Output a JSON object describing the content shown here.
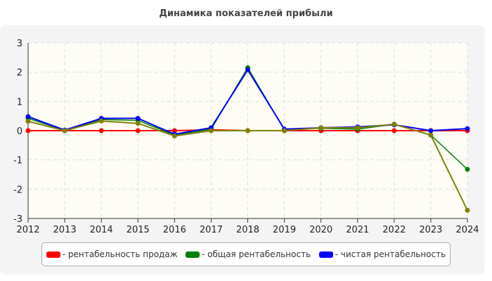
{
  "chart_data": {
    "type": "line",
    "title": "Динамика показателей прибыли",
    "categories": [
      "2012",
      "2013",
      "2014",
      "2015",
      "2016",
      "2017",
      "2018",
      "2019",
      "2020",
      "2021",
      "2022",
      "2023",
      "2024"
    ],
    "ylim": [
      -3,
      3
    ],
    "yticks": [
      "3",
      "2",
      "1",
      "0",
      "-1",
      "-2",
      "-3"
    ],
    "grid": true,
    "legend_position": "bottom",
    "series": [
      {
        "name": "- рентабельность продаж",
        "color": "#ff0000",
        "values": [
          0,
          0,
          0,
          0,
          0,
          0.03,
          0,
          0,
          0,
          0,
          0,
          0,
          0
        ]
      },
      {
        "name": "- общая рентабельность",
        "color": "#008000",
        "values": [
          0.42,
          0.01,
          0.38,
          0.35,
          -0.15,
          0.05,
          2.15,
          0.03,
          0.08,
          0.05,
          0.22,
          -0.15,
          -1.32
        ]
      },
      {
        "name": "- чистая рентабельность",
        "color": "#0000ff",
        "values": [
          0.48,
          0.02,
          0.42,
          0.42,
          -0.12,
          0.1,
          2.08,
          0.05,
          0.1,
          0.13,
          0.2,
          0.0,
          0.07
        ]
      },
      {
        "color": "#808000",
        "values": [
          0.32,
          0.0,
          0.33,
          0.25,
          -0.18,
          0.0,
          0.0,
          0.0,
          0.1,
          0.1,
          0.22,
          -0.15,
          -2.72
        ]
      }
    ]
  }
}
